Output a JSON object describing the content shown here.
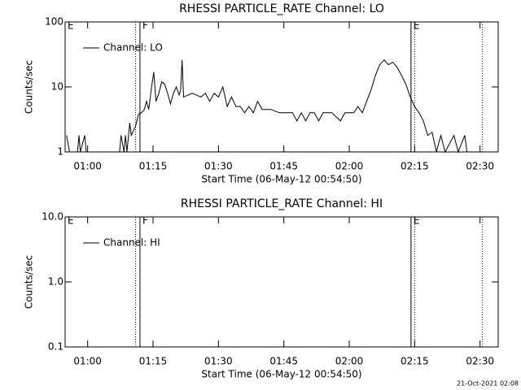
{
  "chart_data": [
    {
      "type": "line",
      "title": "RHESSI PARTICLE_RATE Channel: LO",
      "ylabel": "Counts/sec",
      "xlabel": "Start Time (06-May-12 00:54:50)",
      "ylog": true,
      "ylim": [
        1,
        100
      ],
      "yticks": [
        1,
        10,
        100
      ],
      "xlim": [
        "00:54:50",
        "02:34:10"
      ],
      "xticks": [
        "01:00",
        "01:15",
        "01:30",
        "01:45",
        "02:00",
        "02:15",
        "02:30"
      ],
      "legend": "upper left",
      "series": [
        {
          "name": "Channel: LO",
          "color": "#000000",
          "x": [
            "00:55:10",
            "00:55:50",
            "00:57:40",
            "00:58:00",
            "00:58:20",
            "00:59:20",
            "00:59:40",
            "01:07:20",
            "01:07:40",
            "01:08:20",
            "01:08:40",
            "01:09:00",
            "01:09:40",
            "01:10:00",
            "01:11:00",
            "01:11:40",
            "01:12:20",
            "01:13:00",
            "01:13:30",
            "01:14:00",
            "01:14:40",
            "01:15:10",
            "01:15:40",
            "01:16:20",
            "01:17:00",
            "01:17:40",
            "01:18:20",
            "01:19:00",
            "01:19:40",
            "01:20:20",
            "01:21:00",
            "01:21:20",
            "01:21:40",
            "01:22:00",
            "01:24:00",
            "01:26:00",
            "01:27:00",
            "01:28:00",
            "01:29:00",
            "01:30:00",
            "01:31:00",
            "01:32:00",
            "01:33:00",
            "01:34:00",
            "01:35:00",
            "01:36:00",
            "01:37:00",
            "01:38:00",
            "01:39:00",
            "01:40:00",
            "01:42:00",
            "01:44:00",
            "01:45:00",
            "01:47:00",
            "01:48:00",
            "01:49:00",
            "01:50:00",
            "01:51:00",
            "01:52:00",
            "01:53:00",
            "01:54:00",
            "01:56:00",
            "01:58:00",
            "01:59:00",
            "02:01:00",
            "02:02:00",
            "02:03:00",
            "02:04:00",
            "02:05:00",
            "02:06:00",
            "02:07:00",
            "02:08:00",
            "02:09:00",
            "02:10:00",
            "02:11:00",
            "02:12:00",
            "02:13:00",
            "02:14:00",
            "02:15:00",
            "02:16:00",
            "02:17:00",
            "02:18:00",
            "02:19:00",
            "02:20:00",
            "02:21:00",
            "02:22:00",
            "02:24:00",
            "02:25:00",
            "02:26:30",
            "02:27:00"
          ],
          "values": [
            1.8,
            1,
            1,
            1.8,
            1,
            1.8,
            1,
            1,
            1.8,
            1,
            1.8,
            1,
            2.8,
            1.8,
            2.5,
            3.8,
            4,
            4.5,
            6,
            4.5,
            10,
            17,
            6,
            8,
            12,
            11,
            8,
            5.5,
            8,
            10,
            7.5,
            9,
            26,
            7,
            8,
            7,
            8,
            6,
            8,
            7,
            10,
            5,
            7,
            5,
            5,
            4,
            5,
            4,
            6,
            4.5,
            4.5,
            4,
            4,
            4,
            3,
            4,
            3,
            4,
            4,
            3,
            4,
            4,
            3,
            4,
            4,
            5,
            4,
            6,
            9,
            15,
            22,
            26,
            22,
            24,
            20,
            15,
            11,
            7,
            5,
            4,
            3,
            1.8,
            2,
            1,
            1.8,
            1,
            1.8,
            1,
            1.8,
            1
          ]
        }
      ],
      "vlines": [
        {
          "x": "01:11:00",
          "style": "dotted"
        },
        {
          "x": "01:12:00",
          "style": "solid"
        },
        {
          "x": "02:14:10",
          "style": "solid"
        },
        {
          "x": "02:15:00",
          "style": "dotted"
        },
        {
          "x": "02:30:30",
          "style": "dotted"
        }
      ],
      "annotations": [
        {
          "text": "E",
          "x": "00:54:50"
        },
        {
          "text": "F",
          "x": "01:12:00"
        },
        {
          "text": "E",
          "x": "02:14:10"
        }
      ]
    },
    {
      "type": "line",
      "title": "RHESSI PARTICLE_RATE Channel: HI",
      "ylabel": "Counts/sec",
      "xlabel": "Start Time (06-May-12 00:54:50)",
      "ylog": true,
      "ylim": [
        0.1,
        10
      ],
      "yticks": [
        0.1,
        {
          "value": 1,
          "label": "1.0"
        },
        {
          "value": 10,
          "label": "10.0"
        }
      ],
      "xlim": [
        "00:54:50",
        "02:34:10"
      ],
      "xticks": [
        "01:00",
        "01:15",
        "01:30",
        "01:45",
        "02:00",
        "02:15",
        "02:30"
      ],
      "legend": "upper left",
      "series": [
        {
          "name": "Channel: HI",
          "color": "#000000",
          "x": [],
          "values": []
        }
      ],
      "vlines": [
        {
          "x": "01:11:00",
          "style": "dotted"
        },
        {
          "x": "01:12:00",
          "style": "solid"
        },
        {
          "x": "02:14:10",
          "style": "solid"
        },
        {
          "x": "02:15:00",
          "style": "dotted"
        },
        {
          "x": "02:30:30",
          "style": "dotted"
        }
      ],
      "annotations": [
        {
          "text": "E",
          "x": "00:54:50"
        },
        {
          "text": "F",
          "x": "01:12:00"
        },
        {
          "text": "E",
          "x": "02:14:10"
        }
      ]
    }
  ],
  "footer": "21-Oct-2021 02:08"
}
